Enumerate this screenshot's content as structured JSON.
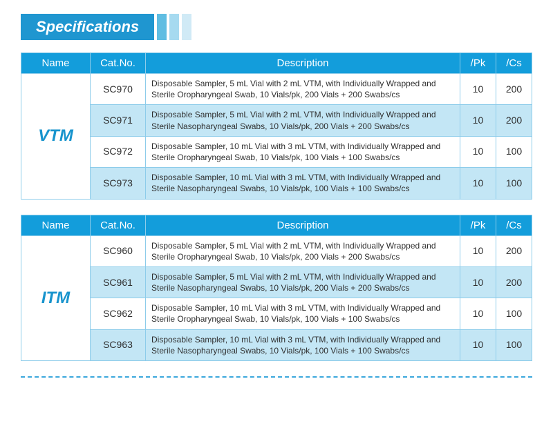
{
  "title": "Specifications",
  "colors": {
    "header_bg": "#139ddb",
    "header_text": "#ffffff",
    "border": "#8dccea",
    "alt_row_bg": "#c3e6f5",
    "name_text": "#1894cd",
    "title_bg": "#1f96d0",
    "stripe1": "#5fbde2",
    "stripe2": "#a6daf0",
    "stripe3": "#d0eaf6",
    "divider": "#3aa7dc"
  },
  "columns": {
    "name": "Name",
    "cat": "Cat.No.",
    "desc": "Description",
    "pk": "/Pk",
    "cs": "/Cs"
  },
  "tables": [
    {
      "name": "VTM",
      "rows": [
        {
          "cat": "SC970",
          "desc": "Disposable Sampler, 5 mL Vial with 2 mL VTM, with Individually Wrapped and Sterile Oropharyngeal Swab, 10 Vials/pk, 200 Vials + 200 Swabs/cs",
          "pk": "10",
          "cs": "200"
        },
        {
          "cat": "SC971",
          "desc": "Disposable Sampler, 5 mL Vial with 2 mL VTM, with Individually Wrapped and Sterile Nasopharyngeal Swabs, 10 Vials/pk, 200 Vials + 200 Swabs/cs",
          "pk": "10",
          "cs": "200"
        },
        {
          "cat": "SC972",
          "desc": "Disposable Sampler, 10 mL Vial with 3 mL VTM, with Individually Wrapped and Sterile Oropharyngeal Swab, 10 Vials/pk, 100 Vials + 100 Swabs/cs",
          "pk": "10",
          "cs": "100"
        },
        {
          "cat": "SC973",
          "desc": "Disposable Sampler, 10 mL Vial with 3 mL VTM, with Individually Wrapped and Sterile Nasopharyngeal Swabs, 10 Vials/pk, 100 Vials + 100 Swabs/cs",
          "pk": "10",
          "cs": "100"
        }
      ]
    },
    {
      "name": "ITM",
      "rows": [
        {
          "cat": "SC960",
          "desc": "Disposable Sampler, 5 mL Vial with 2 mL VTM, with Individually Wrapped and Sterile Oropharyngeal Swab, 10 Vials/pk, 200 Vials + 200 Swabs/cs",
          "pk": "10",
          "cs": "200"
        },
        {
          "cat": "SC961",
          "desc": "Disposable Sampler, 5 mL Vial with 2 mL VTM, with Individually Wrapped and Sterile Nasopharyngeal Swabs, 10 Vials/pk, 200 Vials + 200 Swabs/cs",
          "pk": "10",
          "cs": "200"
        },
        {
          "cat": "SC962",
          "desc": "Disposable Sampler, 10 mL Vial with 3 mL VTM, with Individually Wrapped and Sterile Oropharyngeal Swab, 10 Vials/pk, 100 Vials + 100 Swabs/cs",
          "pk": "10",
          "cs": "100"
        },
        {
          "cat": "SC963",
          "desc": "Disposable Sampler, 10 mL Vial with 3 mL VTM, with Individually Wrapped and Sterile Nasopharyngeal Swabs, 10 Vials/pk, 100 Vials + 100 Swabs/cs",
          "pk": "10",
          "cs": "100"
        }
      ]
    }
  ]
}
